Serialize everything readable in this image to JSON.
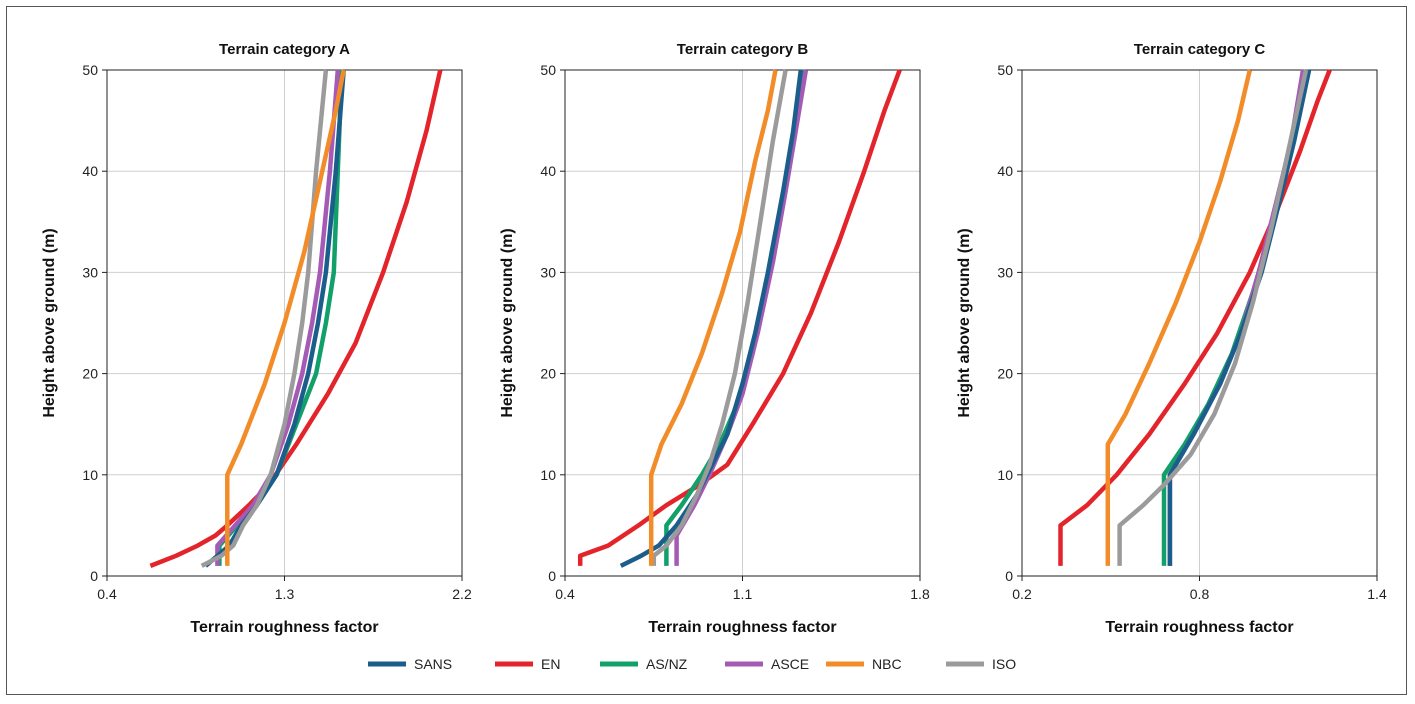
{
  "colors": {
    "SANS": "#1b5e8c",
    "EN": "#e3242b",
    "AS/NZ": "#12a06a",
    "ASCE": "#a55bb5",
    "NBC": "#f28c28",
    "ISO": "#9b9b9b"
  },
  "legend": [
    "SANS",
    "EN",
    "AS/NZ",
    "ASCE",
    "NBC",
    "ISO"
  ],
  "chart_data": [
    {
      "type": "line",
      "title": "Terrain category A",
      "xlabel": "Terrain roughness factor",
      "ylabel": "Height above ground (m)",
      "xlim": [
        0.4,
        2.2
      ],
      "ylim": [
        0,
        50
      ],
      "xticks": [
        "0.4",
        "1.3",
        "2.2"
      ],
      "yticks": [
        "0",
        "10",
        "20",
        "30",
        "40",
        "50"
      ],
      "grid": true,
      "series": [
        {
          "name": "EN",
          "points": [
            [
              0.62,
              1
            ],
            [
              0.75,
              2
            ],
            [
              0.86,
              3
            ],
            [
              0.95,
              4
            ],
            [
              1.01,
              5
            ],
            [
              1.12,
              7
            ],
            [
              1.22,
              9
            ],
            [
              1.36,
              13
            ],
            [
              1.52,
              18
            ],
            [
              1.66,
              23
            ],
            [
              1.8,
              30
            ],
            [
              1.92,
              37
            ],
            [
              2.02,
              44
            ],
            [
              2.09,
              50
            ]
          ]
        },
        {
          "name": "AS/NZ",
          "points": [
            [
              0.97,
              1
            ],
            [
              0.97,
              3
            ],
            [
              1.06,
              5
            ],
            [
              1.14,
              7
            ],
            [
              1.26,
              10
            ],
            [
              1.34,
              14
            ],
            [
              1.46,
              20
            ],
            [
              1.51,
              25
            ],
            [
              1.55,
              30
            ],
            [
              1.57,
              40
            ],
            [
              1.59,
              50
            ]
          ]
        },
        {
          "name": "ASCE",
          "points": [
            [
              0.96,
              1
            ],
            [
              0.96,
              3
            ],
            [
              1.05,
              5
            ],
            [
              1.14,
              7
            ],
            [
              1.23,
              10
            ],
            [
              1.32,
              15
            ],
            [
              1.39,
              20
            ],
            [
              1.44,
              25
            ],
            [
              1.48,
              30
            ],
            [
              1.53,
              40
            ],
            [
              1.57,
              50
            ]
          ]
        },
        {
          "name": "SANS",
          "points": [
            [
              0.9,
              1
            ],
            [
              0.96,
              2
            ],
            [
              1.02,
              3
            ],
            [
              1.08,
              5
            ],
            [
              1.16,
              7
            ],
            [
              1.26,
              10
            ],
            [
              1.35,
              15
            ],
            [
              1.42,
              20
            ],
            [
              1.47,
              25
            ],
            [
              1.51,
              30
            ],
            [
              1.56,
              40
            ],
            [
              1.6,
              50
            ]
          ]
        },
        {
          "name": "ISO",
          "points": [
            [
              0.88,
              1
            ],
            [
              0.98,
              2
            ],
            [
              1.04,
              3
            ],
            [
              1.09,
              5
            ],
            [
              1.16,
              7
            ],
            [
              1.23,
              10
            ],
            [
              1.3,
              15
            ],
            [
              1.35,
              20
            ],
            [
              1.39,
              25
            ],
            [
              1.42,
              30
            ],
            [
              1.46,
              40
            ],
            [
              1.51,
              50
            ]
          ]
        },
        {
          "name": "NBC",
          "points": [
            [
              1.01,
              1
            ],
            [
              1.01,
              10
            ],
            [
              1.08,
              13
            ],
            [
              1.2,
              19
            ],
            [
              1.3,
              25
            ],
            [
              1.4,
              32
            ],
            [
              1.48,
              39
            ],
            [
              1.56,
              46
            ],
            [
              1.6,
              50
            ]
          ]
        }
      ]
    },
    {
      "type": "line",
      "title": "Terrain category B",
      "xlabel": "Terrain roughness factor",
      "ylabel": "Height above ground (m)",
      "xlim": [
        0.4,
        1.8
      ],
      "ylim": [
        0,
        50
      ],
      "xticks": [
        "0.4",
        "1.1",
        "1.8"
      ],
      "yticks": [
        "0",
        "10",
        "20",
        "30",
        "40",
        "50"
      ],
      "grid": true,
      "series": [
        {
          "name": "EN",
          "points": [
            [
              0.46,
              1
            ],
            [
              0.46,
              2
            ],
            [
              0.57,
              3
            ],
            [
              0.69,
              5
            ],
            [
              0.8,
              7
            ],
            [
              0.93,
              9
            ],
            [
              1.04,
              11
            ],
            [
              1.14,
              15
            ],
            [
              1.26,
              20
            ],
            [
              1.37,
              26
            ],
            [
              1.48,
              33
            ],
            [
              1.58,
              40
            ],
            [
              1.66,
              46
            ],
            [
              1.72,
              50
            ]
          ]
        },
        {
          "name": "AS/NZ",
          "points": [
            [
              0.8,
              1
            ],
            [
              0.8,
              5
            ],
            [
              0.86,
              7
            ],
            [
              0.94,
              10
            ],
            [
              1.01,
              13
            ],
            [
              1.08,
              17
            ],
            [
              1.14,
              22
            ],
            [
              1.19,
              28
            ],
            [
              1.24,
              35
            ],
            [
              1.29,
              42
            ],
            [
              1.34,
              50
            ]
          ]
        },
        {
          "name": "ASCE",
          "points": [
            [
              0.84,
              1
            ],
            [
              0.84,
              4
            ],
            [
              0.91,
              7
            ],
            [
              0.97,
              10
            ],
            [
              1.04,
              14
            ],
            [
              1.1,
              18
            ],
            [
              1.16,
              24
            ],
            [
              1.22,
              31
            ],
            [
              1.27,
              38
            ],
            [
              1.31,
              44
            ],
            [
              1.35,
              50
            ]
          ]
        },
        {
          "name": "SANS",
          "points": [
            [
              0.62,
              1
            ],
            [
              0.7,
              2
            ],
            [
              0.77,
              3
            ],
            [
              0.84,
              5
            ],
            [
              0.92,
              8
            ],
            [
              0.98,
              11
            ],
            [
              1.04,
              14
            ],
            [
              1.1,
              19
            ],
            [
              1.15,
              24
            ],
            [
              1.2,
              30
            ],
            [
              1.26,
              38
            ],
            [
              1.3,
              44
            ],
            [
              1.33,
              50
            ]
          ]
        },
        {
          "name": "ISO",
          "points": [
            [
              0.75,
              1
            ],
            [
              0.75,
              2
            ],
            [
              0.8,
              3
            ],
            [
              0.86,
              5
            ],
            [
              0.92,
              8
            ],
            [
              0.97,
              11
            ],
            [
              1.02,
              15
            ],
            [
              1.07,
              20
            ],
            [
              1.12,
              27
            ],
            [
              1.17,
              35
            ],
            [
              1.22,
              43
            ],
            [
              1.27,
              50
            ]
          ]
        },
        {
          "name": "NBC",
          "points": [
            [
              0.74,
              1
            ],
            [
              0.74,
              10
            ],
            [
              0.78,
              13
            ],
            [
              0.86,
              17
            ],
            [
              0.94,
              22
            ],
            [
              1.02,
              28
            ],
            [
              1.09,
              34
            ],
            [
              1.15,
              41
            ],
            [
              1.2,
              46
            ],
            [
              1.23,
              50
            ]
          ]
        }
      ]
    },
    {
      "type": "line",
      "title": "Terrain category C",
      "xlabel": "Terrain roughness factor",
      "ylabel": "Height above ground (m)",
      "xlim": [
        0.2,
        1.4
      ],
      "ylim": [
        0,
        50
      ],
      "xticks": [
        "0.2",
        "0.8",
        "1.4"
      ],
      "yticks": [
        "0",
        "10",
        "20",
        "30",
        "40",
        "50"
      ],
      "grid": true,
      "series": [
        {
          "name": "EN",
          "points": [
            [
              0.33,
              1
            ],
            [
              0.33,
              5
            ],
            [
              0.42,
              7
            ],
            [
              0.52,
              10
            ],
            [
              0.63,
              14
            ],
            [
              0.75,
              19
            ],
            [
              0.86,
              24
            ],
            [
              0.97,
              30
            ],
            [
              1.06,
              36
            ],
            [
              1.14,
              42
            ],
            [
              1.2,
              47
            ],
            [
              1.24,
              50
            ]
          ]
        },
        {
          "name": "AS/NZ",
          "points": [
            [
              0.68,
              1
            ],
            [
              0.68,
              10
            ],
            [
              0.75,
              13
            ],
            [
              0.83,
              17
            ],
            [
              0.91,
              22
            ],
            [
              0.98,
              28
            ],
            [
              1.04,
              34
            ],
            [
              1.09,
              40
            ],
            [
              1.14,
              46
            ],
            [
              1.17,
              50
            ]
          ]
        },
        {
          "name": "ASCE",
          "points": [
            [
              0.7,
              1
            ],
            [
              0.7,
              10
            ],
            [
              0.78,
              14
            ],
            [
              0.87,
              19
            ],
            [
              0.94,
              24
            ],
            [
              1.0,
              30
            ],
            [
              1.06,
              37
            ],
            [
              1.11,
              43
            ],
            [
              1.15,
              50
            ]
          ]
        },
        {
          "name": "SANS",
          "points": [
            [
              0.7,
              1
            ],
            [
              0.7,
              10
            ],
            [
              0.78,
              14
            ],
            [
              0.87,
              19
            ],
            [
              0.94,
              24
            ],
            [
              1.01,
              30
            ],
            [
              1.07,
              37
            ],
            [
              1.12,
              43
            ],
            [
              1.17,
              50
            ]
          ]
        },
        {
          "name": "ISO",
          "points": [
            [
              0.53,
              1
            ],
            [
              0.53,
              5
            ],
            [
              0.61,
              7
            ],
            [
              0.68,
              9
            ],
            [
              0.77,
              12
            ],
            [
              0.85,
              16
            ],
            [
              0.92,
              21
            ],
            [
              0.98,
              27
            ],
            [
              1.04,
              34
            ],
            [
              1.1,
              42
            ],
            [
              1.16,
              50
            ]
          ]
        },
        {
          "name": "NBC",
          "points": [
            [
              0.49,
              1
            ],
            [
              0.49,
              13
            ],
            [
              0.55,
              16
            ],
            [
              0.63,
              21
            ],
            [
              0.72,
              27
            ],
            [
              0.8,
              33
            ],
            [
              0.87,
              39
            ],
            [
              0.93,
              45
            ],
            [
              0.97,
              50
            ]
          ]
        }
      ]
    }
  ]
}
